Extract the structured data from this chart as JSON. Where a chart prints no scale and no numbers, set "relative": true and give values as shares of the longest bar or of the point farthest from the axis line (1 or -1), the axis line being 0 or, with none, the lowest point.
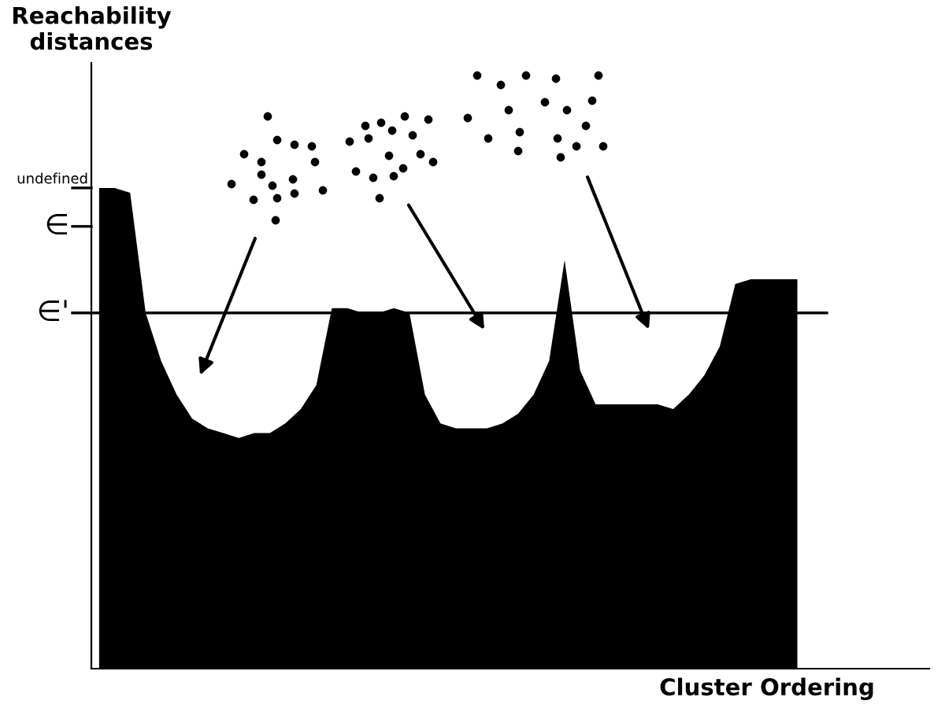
{
  "chart_data": {
    "type": "area",
    "relative": true,
    "annotations": [
      "Reachability\ndistances"
    ],
    "xlabel": "Cluster Ordering",
    "categories": [
      null,
      null,
      null,
      null,
      null,
      null,
      null,
      null,
      null,
      null,
      null,
      null,
      null,
      null,
      null,
      null,
      null,
      null,
      null,
      null,
      null,
      null,
      null,
      null,
      null,
      null,
      null,
      null,
      null,
      null,
      null,
      null,
      null,
      null,
      null,
      null,
      null,
      null,
      null,
      null,
      null,
      null,
      null,
      null,
      null,
      null
    ],
    "series": [
      {
        "color": "#000000",
        "values": [
          1.0,
          1.0,
          0.99,
          0.74,
          0.64,
          0.57,
          0.52,
          0.5,
          0.49,
          0.48,
          0.49,
          0.49,
          0.51,
          0.54,
          0.59,
          0.75,
          0.75,
          0.74,
          0.74,
          0.75,
          0.74,
          0.57,
          0.51,
          0.5,
          0.5,
          0.5,
          0.51,
          0.53,
          0.57,
          0.64,
          0.85,
          0.62,
          0.55,
          0.55,
          0.55,
          0.55,
          0.55,
          0.54,
          0.57,
          0.61,
          0.67,
          0.8,
          0.81,
          0.81,
          0.81,
          0.81
        ]
      }
    ],
    "ref_lines": [
      {
        "axis": "y",
        "value": 1.0,
        "label": "undefined"
      },
      {
        "axis": "y",
        "value": 0.92,
        "label": "∈"
      },
      {
        "axis": "y",
        "value": 0.74,
        "label": "∈'",
        "color": "#000000"
      }
    ],
    "legend": false
  }
}
